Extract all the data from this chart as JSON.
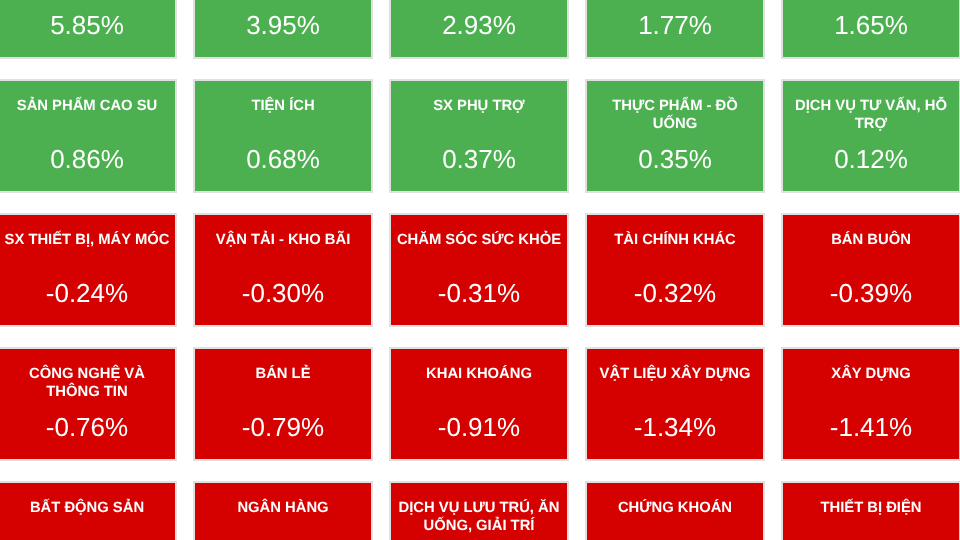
{
  "chart_data": {
    "type": "other",
    "categories": [
      null,
      null,
      null,
      null,
      null,
      "SẢN PHẨM CAO SU",
      "TIỆN ÍCH",
      "SX PHỤ TRỢ",
      "THỰC PHẨM - ĐỒ UỐNG",
      "DỊCH VỤ TƯ VẤN, HỖ TRỢ",
      "SX THIẾT BỊ, MÁY MÓC",
      "VẬN TẢI - KHO BÃI",
      "CHĂM SÓC SỨC KHỎE",
      "TÀI CHÍNH KHÁC",
      "BÁN BUÔN",
      "CÔNG NGHỆ VÀ THÔNG TIN",
      "BÁN LẺ",
      "KHAI KHOÁNG",
      "VẬT LIỆU XÂY DỰNG",
      "XÂY DỰNG",
      "BẤT ĐỘNG SẢN",
      "NGÂN HÀNG",
      "DỊCH VỤ LƯU TRÚ, ĂN UỐNG, GIẢI TRÍ",
      "CHỨNG KHOÁN",
      "THIẾT BỊ ĐIỆN"
    ],
    "values": [
      5.85,
      3.95,
      2.93,
      1.77,
      1.65,
      0.86,
      0.68,
      0.37,
      0.35,
      0.12,
      -0.24,
      -0.3,
      -0.31,
      -0.32,
      -0.39,
      -0.76,
      -0.79,
      -0.91,
      -1.34,
      -1.41,
      null,
      null,
      null,
      null,
      null
    ],
    "value_labels": [
      "5.85%",
      "3.95%",
      "2.93%",
      "1.77%",
      "1.65%",
      "0.86%",
      "0.68%",
      "0.37%",
      "0.35%",
      "0.12%",
      "-0.24%",
      "-0.30%",
      "-0.31%",
      "-0.32%",
      "-0.39%",
      "-0.76%",
      "-0.79%",
      "-0.91%",
      "-1.34%",
      "-1.41%",
      null,
      null,
      null,
      null,
      null
    ],
    "colors": [
      "#4caf50",
      "#4caf50",
      "#4caf50",
      "#4caf50",
      "#4caf50",
      "#4caf50",
      "#4caf50",
      "#4caf50",
      "#4caf50",
      "#4caf50",
      "#d50000",
      "#d50000",
      "#d50000",
      "#d50000",
      "#d50000",
      "#d50000",
      "#d50000",
      "#d50000",
      "#d50000",
      "#d50000",
      "#d50000",
      "#d50000",
      "#d50000",
      "#d50000",
      "#d50000"
    ]
  }
}
